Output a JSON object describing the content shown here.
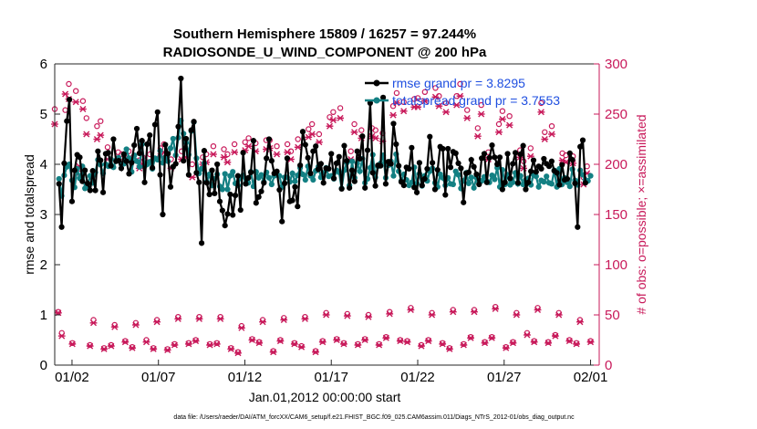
{
  "chart_data": {
    "type": "line",
    "title": "Southern Hemisphere 15809 / 16257 = 97.244%",
    "subtitle": "RADIOSONDE_U_WIND_COMPONENT @ 200 hPa",
    "xlabel": "Jan.01,2012 00:00:00 start",
    "ylabel": "rmse and totalspread",
    "ylabel_right": "# of obs: o=possible; ×=assimilated",
    "ylim": [
      0,
      6
    ],
    "ylim_right": [
      0,
      300
    ],
    "xlim": [
      0,
      31.5
    ],
    "yticks": [
      "0",
      "1",
      "2",
      "3",
      "4",
      "5",
      "6"
    ],
    "yticks_right": [
      "0",
      "50",
      "100",
      "150",
      "200",
      "250",
      "300"
    ],
    "xtick_labels": [
      "01/02",
      "01/07",
      "01/12",
      "01/17",
      "01/22",
      "01/27",
      "02/01"
    ],
    "xtick_days": [
      1,
      6,
      11,
      16,
      21,
      26,
      31
    ],
    "footer": "data file: /Users/raeder/DAI/ATM_forcXX/CAM6_setup/f.e21.FHIST_BGC.f09_025.CAM6assim.011/Diags_NTrS_2012-01/obs_diag_output.nc",
    "colors": {
      "rmse": "#000000",
      "spread": "#138083",
      "counts": "#c8195a",
      "legend": "#1f4fe0"
    },
    "series": [
      {
        "name": "rmse",
        "legend": "rmse grand pr = 3.8295",
        "values": [
          3.61,
          2.75,
          4.02,
          4.86,
          5.29,
          3.26,
          3.88,
          4.19,
          4.14,
          3.66,
          3.88,
          3.62,
          3.48,
          3.87,
          3.48,
          4.26,
          4.08,
          3.44,
          4.21,
          4.23,
          3.97,
          4.5,
          4.06,
          4.07,
          3.92,
          4.2,
          4.06,
          3.81,
          4.03,
          4.38,
          4.71,
          4.22,
          4.47,
          3.64,
          4.4,
          4.58,
          3.93,
          4.79,
          5.04,
          3.79,
          3.0,
          4.39,
          4.21,
          3.55,
          3.95,
          4.01,
          4.75,
          5.71,
          4.07,
          4.51,
          3.79,
          4.68,
          4.85,
          3.83,
          3.64,
          2.43,
          4.27,
          3.63,
          3.4,
          3.88,
          3.42,
          4.0,
          3.26,
          3.08,
          2.78,
          3.01,
          3.4,
          2.99,
          3.38,
          3.77,
          3.09,
          4.23,
          3.61,
          3.73,
          3.84,
          4.47,
          3.23,
          3.35,
          3.46,
          3.63,
          4.12,
          4.5,
          4.07,
          3.82,
          3.86,
          3.49,
          2.86,
          3.62,
          4.12,
          3.26,
          3.28,
          3.55,
          3.16,
          3.98,
          4.65,
          4.39,
          4.13,
          3.82,
          4.26,
          4.36,
          3.9,
          4.01,
          3.63,
          3.92,
          3.91,
          4.21,
          3.72,
          4.02,
          4.15,
          3.51,
          4.37,
          4.07,
          3.53,
          3.88,
          3.66,
          4.26,
          4.11,
          4.56,
          3.53,
          4.28,
          5.22,
          3.83,
          3.57,
          3.98,
          3.97,
          5.33,
          3.61,
          4.05,
          4.01,
          4.81,
          4.4,
          3.97,
          3.65,
          3.58,
          3.94,
          3.91,
          4.33,
          3.54,
          3.44,
          4.03,
          3.58,
          3.71,
          3.91,
          4.55,
          4.03,
          3.5,
          3.89,
          4.35,
          4.31,
          3.39,
          4.31,
          3.94,
          4.25,
          4.22,
          4.02,
          3.92,
          3.24,
          3.82,
          3.84,
          4.09,
          3.95,
          3.8,
          3.6,
          4.12,
          4.21,
          3.64,
          4.13,
          4.38,
          4.14,
          4.0,
          4.14,
          3.5,
          3.64,
          4.21,
          3.72,
          4.01,
          4.23,
          3.63,
          4.2,
          4.37,
          3.5,
          3.64,
          3.86,
          4.08,
          3.85,
          3.96,
          3.91,
          4.11,
          4.01,
          3.96,
          4.06,
          3.87,
          3.83,
          3.59,
          3.99,
          3.69,
          3.71,
          4.22,
          4.09,
          3.62,
          2.75,
          4.35,
          4.48,
          3.63
        ]
      },
      {
        "name": "totalspread",
        "legend": "totalspread grand pr = 3.7553",
        "values": [
          3.71,
          3.37,
          3.78,
          3.95,
          4.0,
          3.68,
          3.54,
          3.91,
          3.72,
          3.96,
          3.52,
          3.56,
          3.77,
          3.63,
          3.84,
          4.09,
          3.99,
          3.82,
          4.0,
          3.96,
          4.1,
          3.94,
          4.08,
          4.13,
          4.0,
          4.01,
          4.3,
          4.12,
          3.85,
          4.18,
          4.06,
          3.95,
          4.4,
          3.96,
          4.0,
          4.05,
          3.91,
          4.12,
          4.09,
          4.27,
          4.03,
          4.14,
          4.06,
          4.32,
          4.51,
          4.18,
          4.53,
          4.87,
          4.61,
          4.43,
          4.19,
          4.66,
          4.84,
          4.12,
          3.82,
          3.91,
          4.02,
          3.65,
          3.8,
          3.58,
          3.71,
          3.8,
          3.56,
          3.5,
          3.81,
          3.5,
          3.77,
          3.85,
          3.62,
          3.58,
          3.73,
          3.78,
          3.62,
          3.63,
          3.85,
          3.56,
          3.85,
          3.73,
          3.79,
          3.65,
          3.84,
          3.73,
          3.6,
          3.77,
          3.79,
          3.77,
          3.55,
          3.74,
          3.74,
          3.65,
          3.82,
          3.66,
          3.78,
          3.93,
          3.8,
          3.69,
          3.96,
          3.77,
          3.69,
          3.87,
          3.95,
          3.74,
          3.83,
          3.93,
          3.76,
          3.77,
          3.71,
          3.88,
          3.84,
          3.52,
          3.88,
          4.03,
          3.58,
          4.06,
          3.73,
          4.02,
          3.86,
          4.11,
          3.63,
          3.71,
          3.93,
          4.19,
          3.74,
          3.96,
          4.02,
          4.18,
          3.73,
          3.98,
          4.06,
          3.77,
          4.2,
          3.86,
          3.67,
          3.8,
          3.69,
          3.58,
          3.64,
          3.94,
          3.62,
          3.81,
          3.57,
          3.77,
          3.67,
          3.86,
          3.92,
          3.63,
          3.55,
          3.8,
          3.73,
          3.58,
          3.73,
          3.61,
          3.6,
          3.86,
          3.79,
          3.52,
          3.67,
          3.83,
          3.62,
          3.74,
          3.53,
          3.73,
          3.64,
          3.67,
          3.75,
          3.66,
          3.64,
          3.78,
          3.7,
          3.93,
          3.55,
          3.89,
          3.6,
          3.79,
          3.59,
          3.64,
          3.83,
          3.61,
          3.77,
          3.6,
          3.69,
          3.72,
          3.59,
          3.79,
          3.76,
          3.55,
          3.68,
          3.65,
          3.76,
          3.63,
          3.61,
          3.88,
          3.55,
          3.91,
          3.6,
          3.73,
          3.64,
          3.56,
          3.9,
          3.68,
          3.59,
          3.88,
          3.79,
          3.69,
          3.67,
          3.77
        ]
      },
      {
        "name": "possible",
        "marker": "circle",
        "values": [
          255,
          53,
          32,
          254,
          280,
          22,
          273,
          191,
          263,
          246,
          20,
          45,
          238,
          243,
          17,
          217,
          20,
          40,
          212,
          210,
          24,
          213,
          18,
          42,
          204,
          207,
          25,
          210,
          17,
          45,
          216,
          220,
          16,
          205,
          21,
          48,
          213,
          216,
          22,
          200,
          25,
          48,
          207,
          210,
          21,
          218,
          22,
          48,
          215,
          210,
          17,
          220,
          13,
          39,
          222,
          226,
          26,
          221,
          23,
          45,
          224,
          224,
          14,
          218,
          25,
          47,
          220,
          213,
          22,
          225,
          19,
          48,
          235,
          240,
          14,
          230,
          24,
          52,
          247,
          252,
          26,
          256,
          22,
          51,
          213,
          240,
          21,
          234,
          26,
          50,
          236,
          234,
          21,
          231,
          28,
          53,
          258,
          271,
          25,
          262,
          24,
          57,
          265,
          266,
          20,
          272,
          25,
          52,
          276,
          268,
          22,
          261,
          17,
          55,
          268,
          280,
          21,
          254,
          28,
          55,
          236,
          259,
          23,
          212,
          28,
          58,
          240,
          253,
          18,
          248,
          23,
          52,
          214,
          203,
          32,
          216,
          24,
          57,
          261,
          232,
          23,
          238,
          30,
          52,
          211,
          209,
          25,
          208,
          22,
          45,
          187,
          198,
          24
        ]
      },
      {
        "name": "assimilated",
        "marker": "x",
        "values": [
          240,
          52,
          29,
          270,
          265,
          21,
          262,
          198,
          255,
          230,
          19,
          42,
          225,
          229,
          16,
          205,
          19,
          38,
          205,
          202,
          23,
          206,
          17,
          40,
          196,
          200,
          23,
          202,
          16,
          43,
          208,
          212,
          15,
          196,
          20,
          46,
          205,
          207,
          21,
          187,
          24,
          46,
          200,
          202,
          20,
          210,
          21,
          46,
          207,
          202,
          16,
          212,
          12,
          37,
          214,
          218,
          25,
          213,
          22,
          43,
          215,
          216,
          13,
          210,
          24,
          45,
          212,
          205,
          21,
          217,
          18,
          46,
          227,
          230,
          13,
          222,
          23,
          50,
          238,
          244,
          25,
          246,
          21,
          49,
          205,
          232,
          20,
          226,
          25,
          48,
          228,
          226,
          20,
          223,
          27,
          51,
          249,
          261,
          24,
          253,
          23,
          55,
          257,
          257,
          19,
          263,
          24,
          50,
          267,
          258,
          21,
          252,
          16,
          53,
          259,
          268,
          20,
          246,
          27,
          53,
          228,
          250,
          22,
          205,
          27,
          56,
          232,
          245,
          17,
          239,
          22,
          50,
          207,
          196,
          30,
          208,
          23,
          55,
          252,
          225,
          22,
          230,
          29,
          50,
          204,
          202,
          24,
          201,
          21,
          43,
          180,
          191,
          23
        ]
      }
    ]
  }
}
